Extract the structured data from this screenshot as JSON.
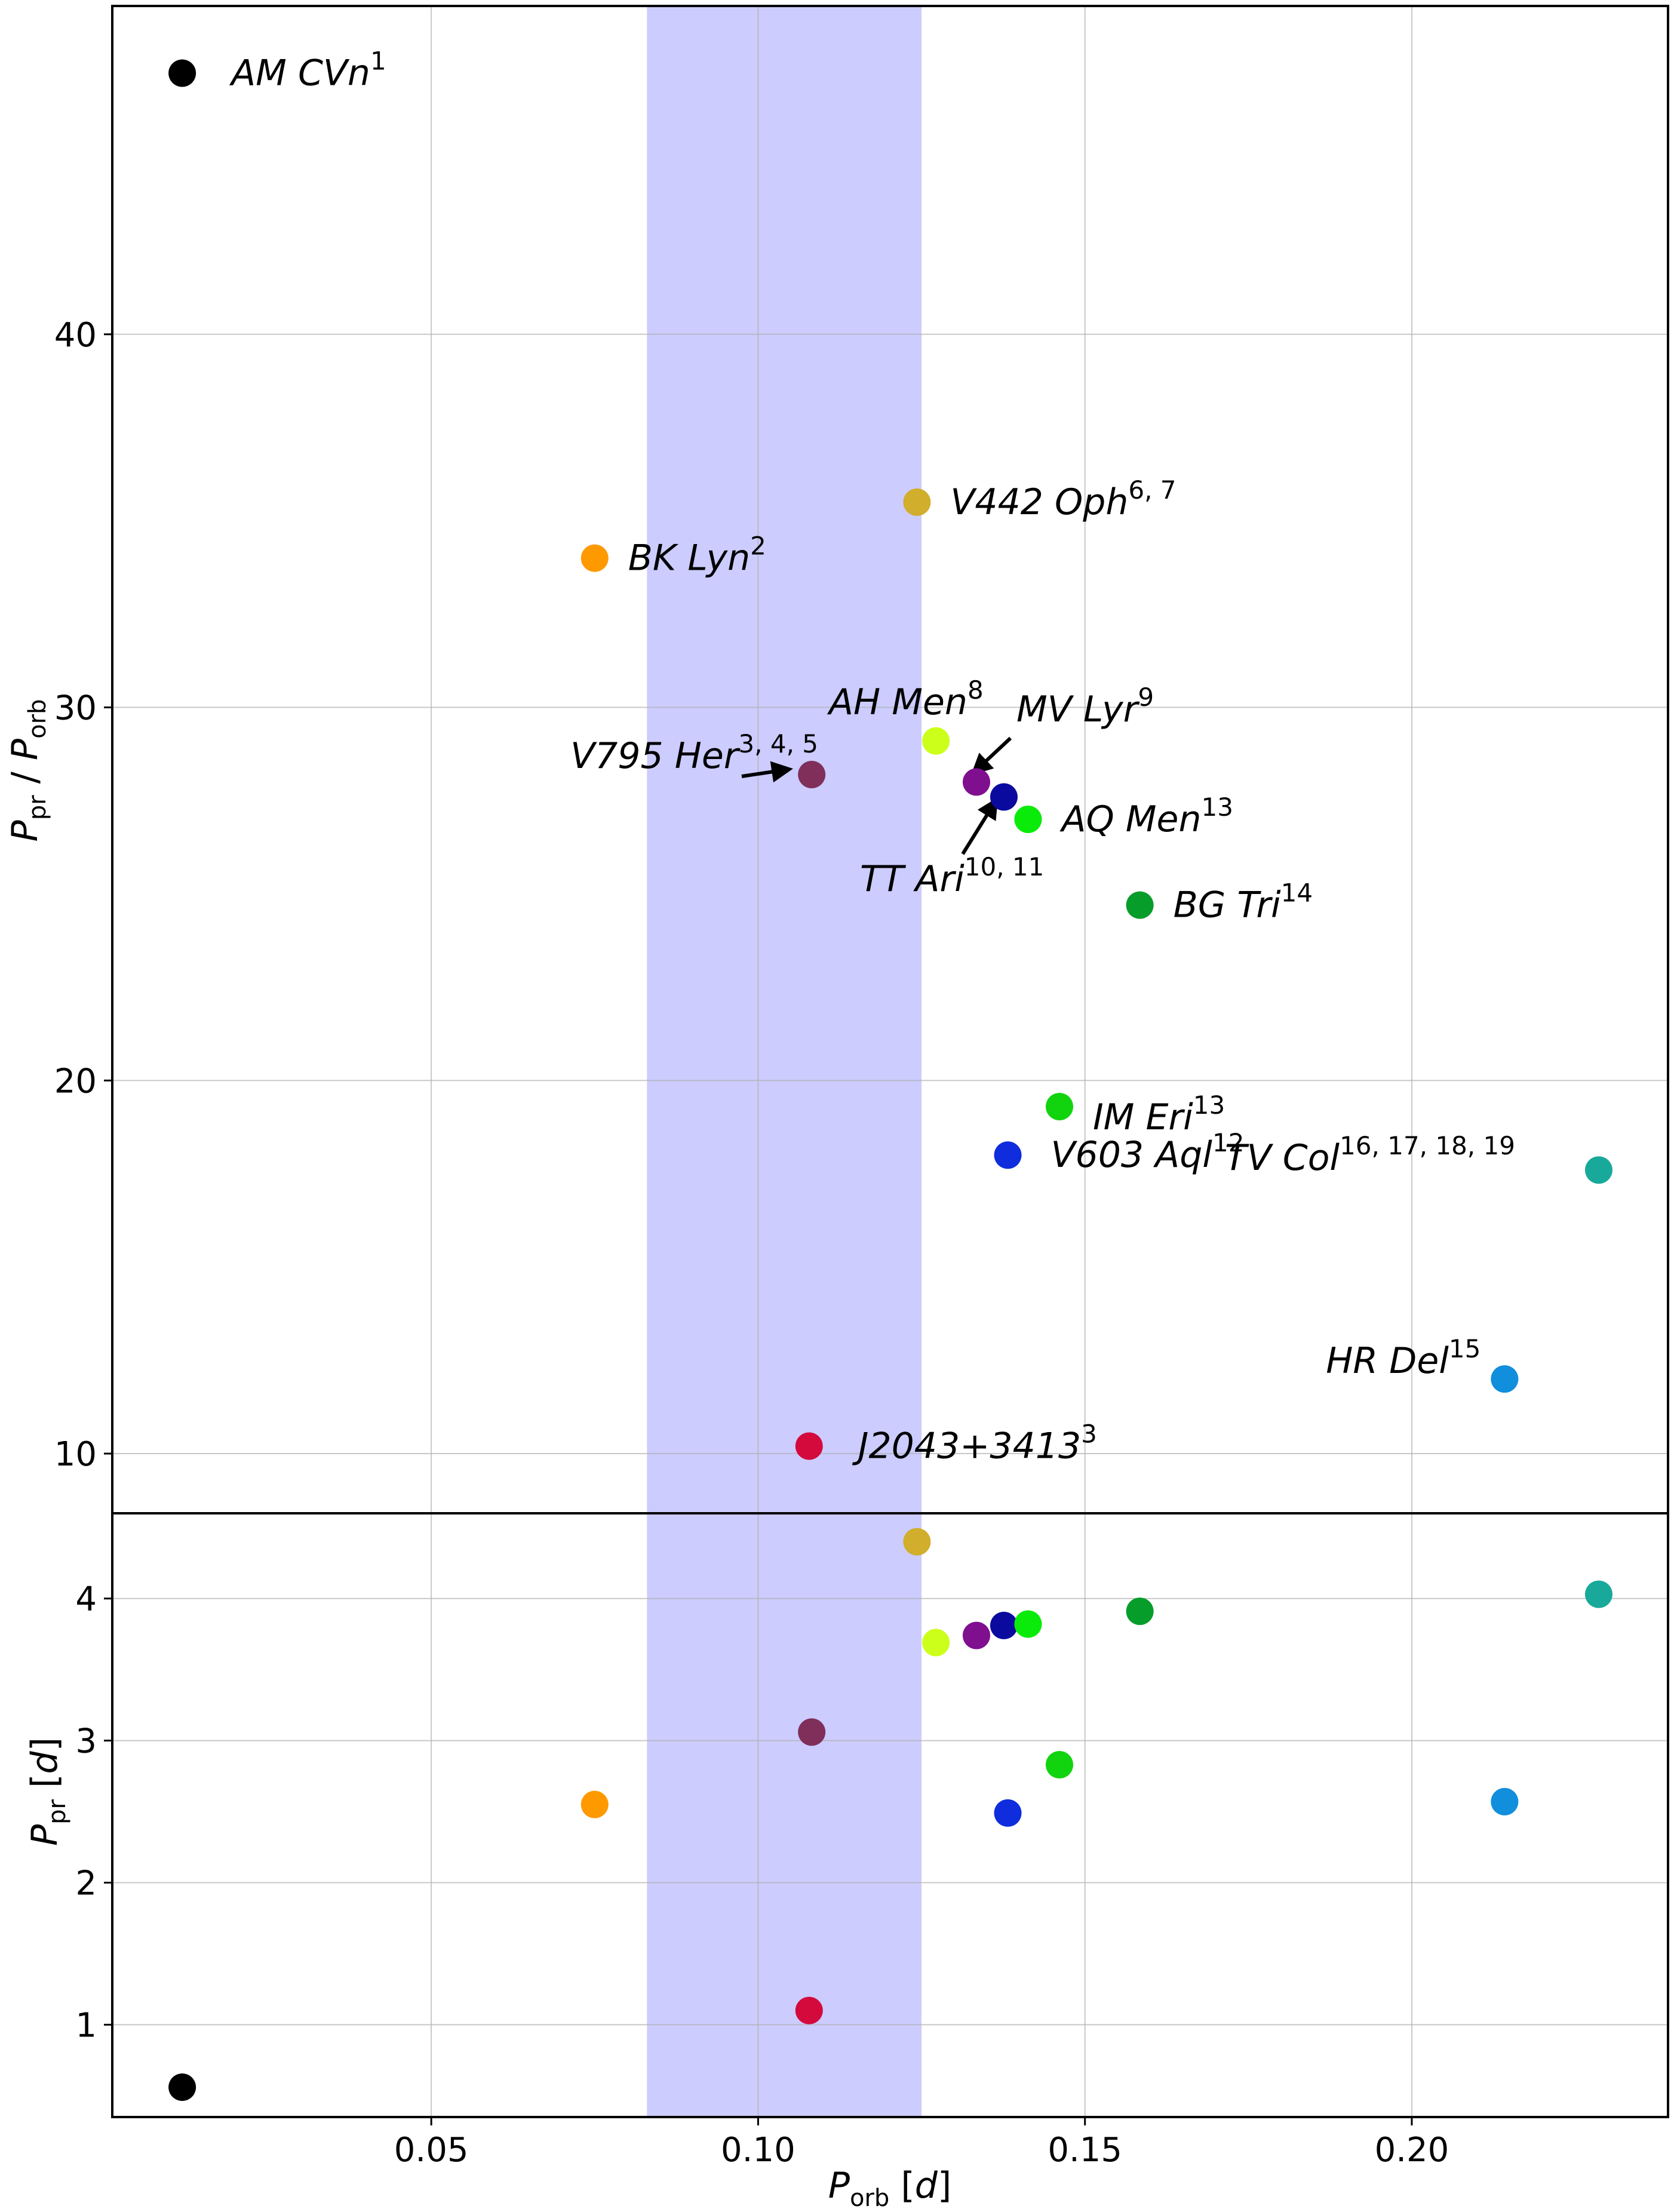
{
  "chart_data": [
    {
      "type": "scatter",
      "panel": "top",
      "ylabel": "P_pr / P_orb",
      "ylim": [
        8.4,
        48.8
      ],
      "xlim": [
        0.0012,
        0.2392
      ],
      "grid": true,
      "y_ticks": [
        "10",
        "20",
        "30",
        "40"
      ],
      "shaded_band": {
        "x0": 0.083,
        "x1": 0.125,
        "color": "#ccccff"
      },
      "points": [
        {
          "name": "AM CVn",
          "sup": "1",
          "x": 0.0119,
          "y": 47.0,
          "color": "#000000"
        },
        {
          "name": "BK Lyn",
          "sup": "2",
          "x": 0.075,
          "y": 34.0,
          "color": "#ff9900"
        },
        {
          "name": "V795 Her",
          "sup": "3, 4, 5",
          "x": 0.1082,
          "y": 28.2,
          "color": "#7f2f5a"
        },
        {
          "name": "J2043+3413",
          "sup": "3",
          "x": 0.1078,
          "y": 10.2,
          "color": "#d40a3c",
          "label_color": "#ff0000"
        },
        {
          "name": "V442 Oph",
          "sup": "6, 7",
          "x": 0.1243,
          "y": 35.5,
          "color": "#d1ae2b"
        },
        {
          "name": "AH Men",
          "sup": "8",
          "x": 0.1272,
          "y": 29.1,
          "color": "#ccff1a"
        },
        {
          "name": "MV Lyr",
          "sup": "9",
          "x": 0.1334,
          "y": 28.0,
          "color": "#7f0f8f"
        },
        {
          "name": "TT Ari",
          "sup": "10, 11",
          "x": 0.1376,
          "y": 27.6,
          "color": "#0a0a9f"
        },
        {
          "name": "AQ Men",
          "sup": "13",
          "x": 0.1413,
          "y": 27.0,
          "color": "#0aeb0a"
        },
        {
          "name": "BG Tri",
          "sup": "14",
          "x": 0.1584,
          "y": 24.7,
          "color": "#069d2a"
        },
        {
          "name": "IM Eri",
          "sup": "13",
          "x": 0.1461,
          "y": 19.3,
          "color": "#11d40f"
        },
        {
          "name": "V603 Aql",
          "sup": "12",
          "x": 0.1382,
          "y": 18.0,
          "color": "#0f2ddd"
        },
        {
          "name": "TV Col",
          "sup": "16, 17, 18, 19",
          "x": 0.2286,
          "y": 17.6,
          "color": "#19a99a"
        },
        {
          "name": "HR Del",
          "sup": "15",
          "x": 0.2142,
          "y": 12.0,
          "color": "#118edc"
        }
      ]
    },
    {
      "type": "scatter",
      "panel": "bottom",
      "xlabel": "P_orb [d]",
      "ylabel": "P_pr [d]",
      "ylim": [
        0.35,
        4.6
      ],
      "xlim": [
        0.0012,
        0.2392
      ],
      "grid": true,
      "x_ticks": [
        "0.05",
        "0.10",
        "0.15",
        "0.20"
      ],
      "y_ticks": [
        "1",
        "2",
        "3",
        "4"
      ],
      "points": [
        {
          "x": 0.0119,
          "y": 0.56,
          "color": "#000000"
        },
        {
          "x": 0.075,
          "y": 2.55,
          "color": "#ff9900"
        },
        {
          "x": 0.1082,
          "y": 3.06,
          "color": "#7f2f5a"
        },
        {
          "x": 0.1078,
          "y": 1.1,
          "color": "#d40a3c"
        },
        {
          "x": 0.1243,
          "y": 4.4,
          "color": "#d1ae2b"
        },
        {
          "x": 0.1272,
          "y": 3.69,
          "color": "#ccff1a"
        },
        {
          "x": 0.1334,
          "y": 3.74,
          "color": "#7f0f8f"
        },
        {
          "x": 0.1376,
          "y": 3.81,
          "color": "#0a0a9f"
        },
        {
          "x": 0.1413,
          "y": 3.82,
          "color": "#0aeb0a"
        },
        {
          "x": 0.1584,
          "y": 3.91,
          "color": "#069d2a"
        },
        {
          "x": 0.1461,
          "y": 2.83,
          "color": "#11d40f"
        },
        {
          "x": 0.1382,
          "y": 2.49,
          "color": "#0f2ddd"
        },
        {
          "x": 0.2286,
          "y": 4.03,
          "color": "#19a99a"
        },
        {
          "x": 0.2142,
          "y": 2.57,
          "color": "#118edc"
        }
      ]
    }
  ]
}
